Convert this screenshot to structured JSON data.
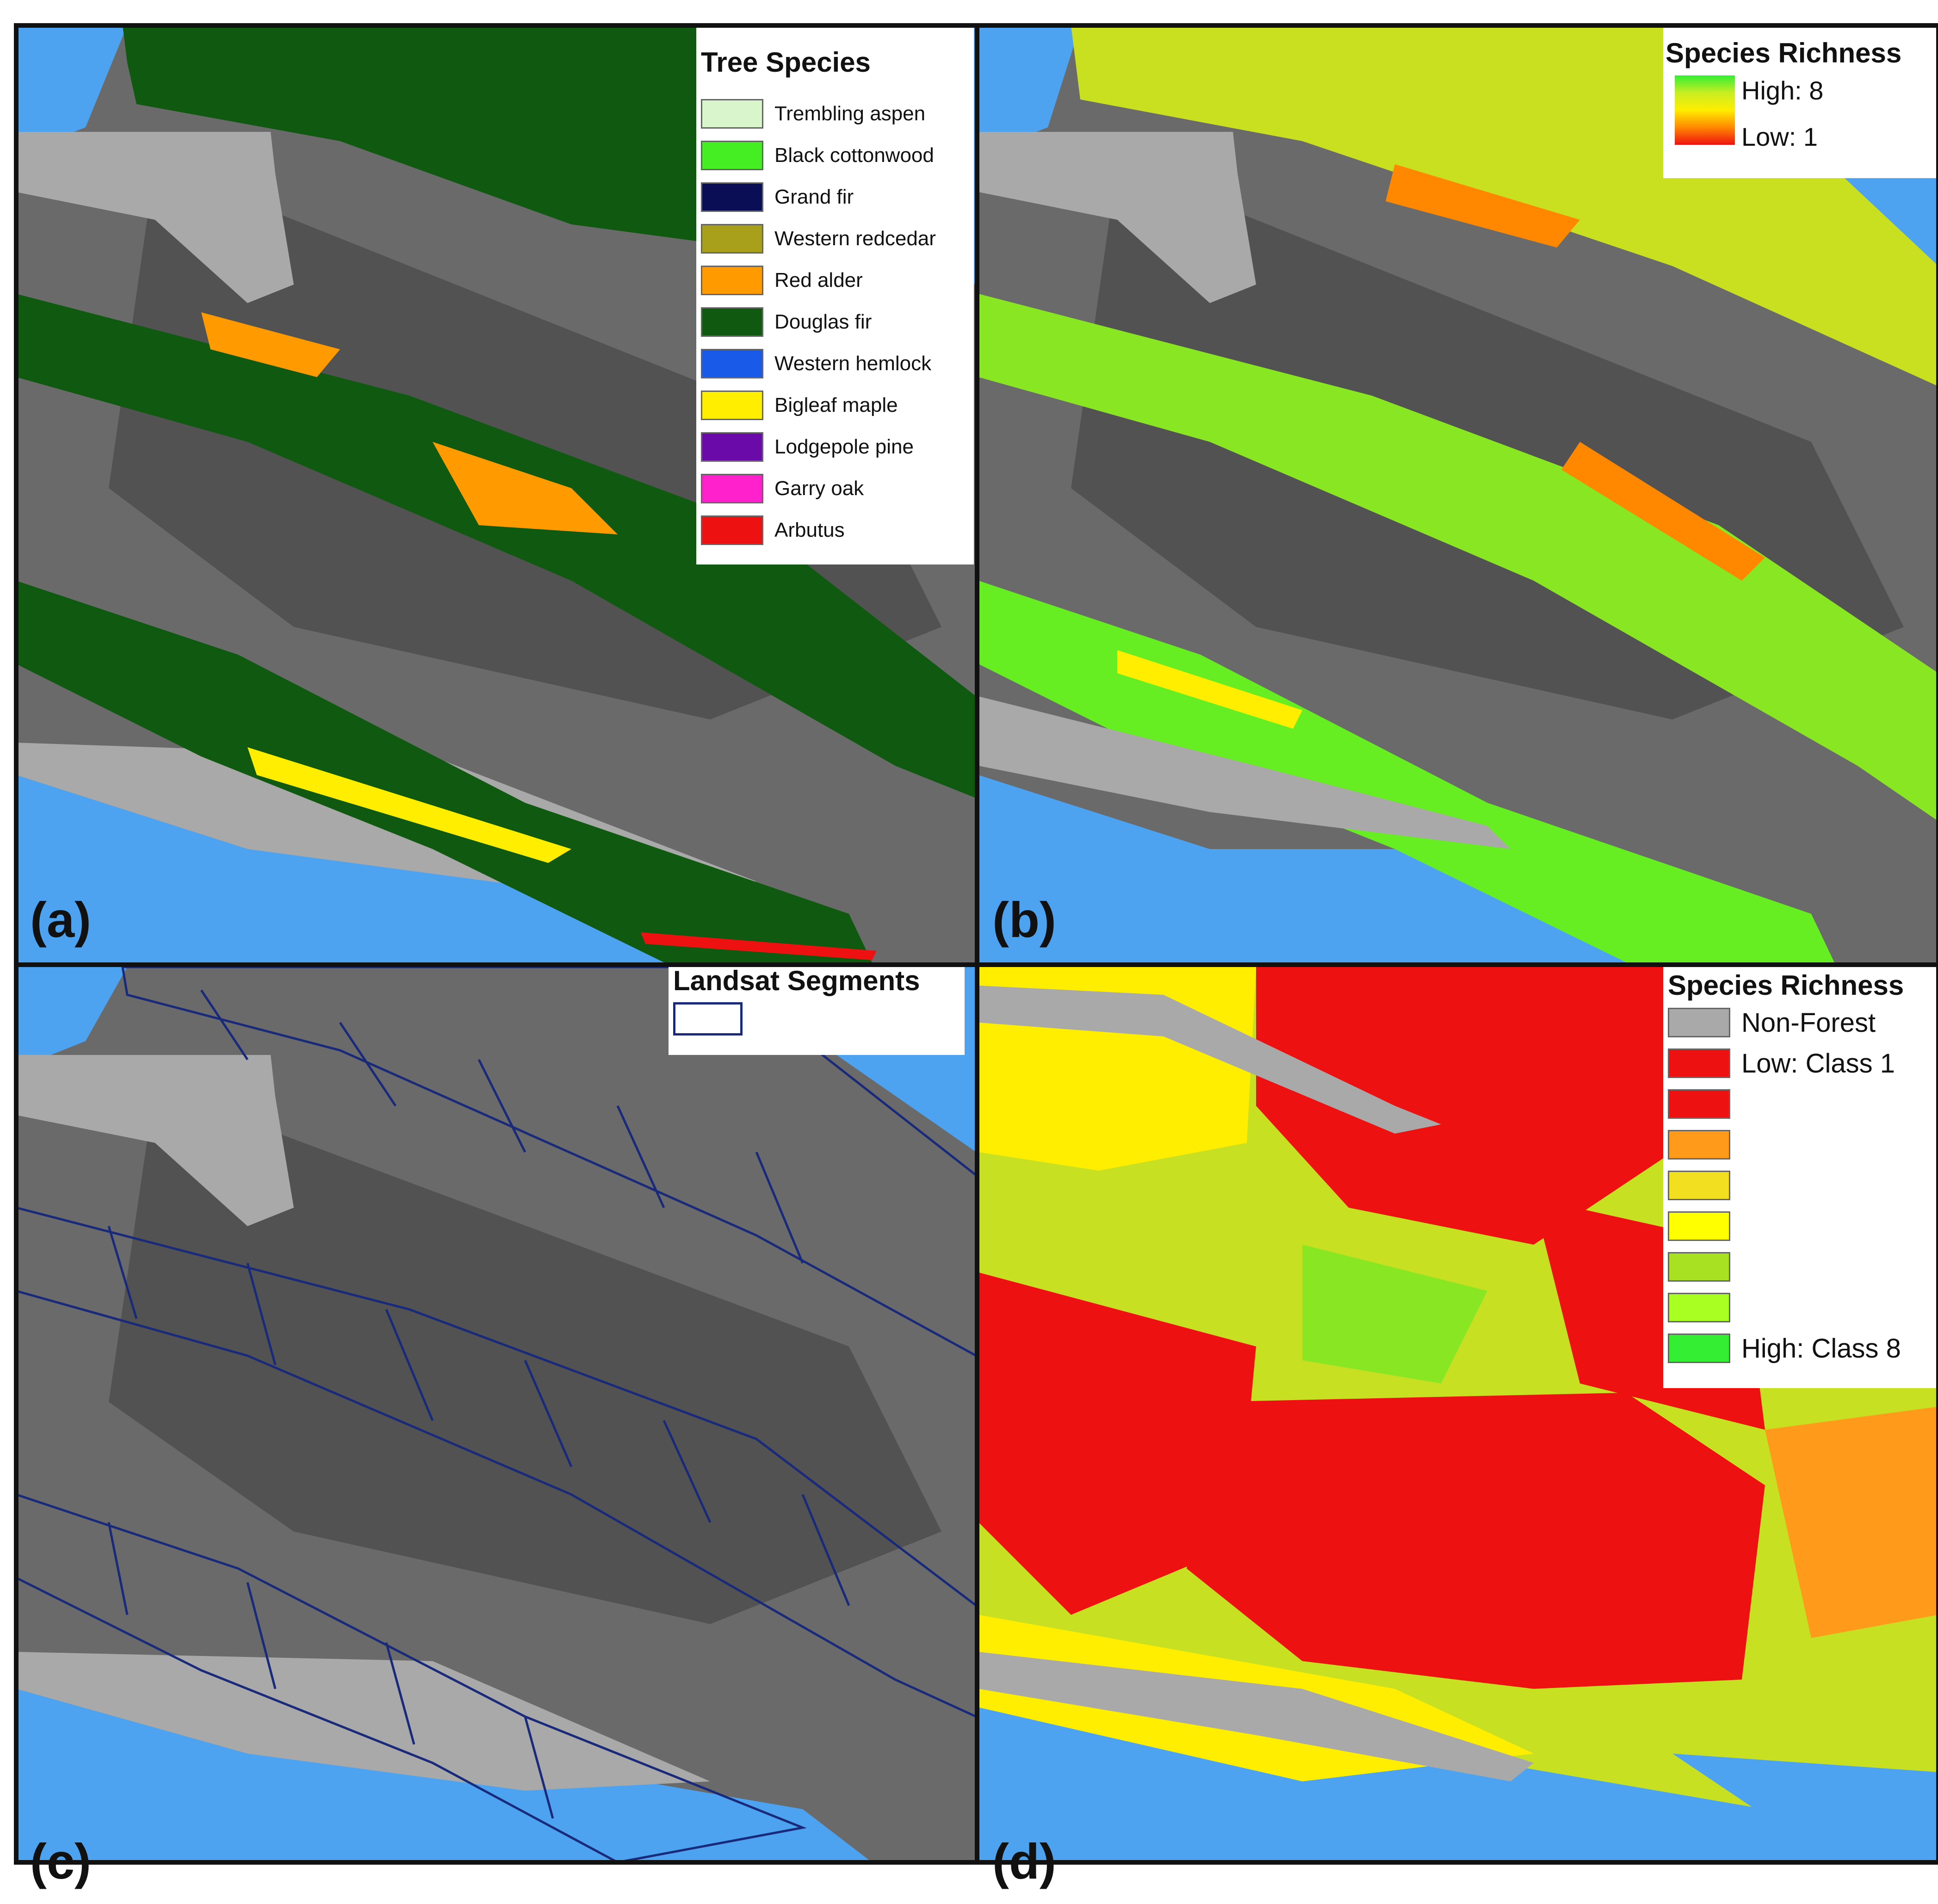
{
  "panels": {
    "a": {
      "label": "(a)",
      "legend": {
        "title": "Tree Species",
        "items": [
          {
            "label": "Trembling aspen",
            "color": "#d8f5cc"
          },
          {
            "label": "Black cottonwood",
            "color": "#44ee22"
          },
          {
            "label": "Grand fir",
            "color": "#0a0f55"
          },
          {
            "label": "Western redcedar",
            "color": "#a8a01a"
          },
          {
            "label": "Red alder",
            "color": "#ff9a00"
          },
          {
            "label": "Douglas fir",
            "color": "#0f5a10"
          },
          {
            "label": "Western hemlock",
            "color": "#1a5ae8"
          },
          {
            "label": "Bigleaf maple",
            "color": "#ffee00"
          },
          {
            "label": "Lodgepole pine",
            "color": "#6a0aa8"
          },
          {
            "label": "Garry oak",
            "color": "#ff22cc"
          },
          {
            "label": "Arbutus",
            "color": "#ee1111"
          }
        ]
      }
    },
    "b": {
      "label": "(b)",
      "legend": {
        "title": "Species Richness",
        "high": "High: 8",
        "low": "Low: 1"
      }
    },
    "c": {
      "label": "(c)",
      "legend": {
        "title": "Landsat Segments",
        "outline_color": "#1a2a7a"
      }
    },
    "d": {
      "label": "(d)",
      "legend": {
        "title": "Species Richness",
        "items": [
          {
            "label": "Non-Forest",
            "color": "#a9a9a9"
          },
          {
            "label": "Low: Class 1",
            "color": "#ee1111"
          },
          {
            "label": "",
            "color": "#ee1111"
          },
          {
            "label": "",
            "color": "#ff9a1a"
          },
          {
            "label": "",
            "color": "#f2e020"
          },
          {
            "label": "",
            "color": "#ffff00"
          },
          {
            "label": "",
            "color": "#a8e022"
          },
          {
            "label": "",
            "color": "#aaff22"
          },
          {
            "label": "High: Class 8",
            "color": "#33ee33"
          }
        ]
      }
    }
  },
  "colors": {
    "water": "#4da3f0",
    "non_forest": "#a9a9a9",
    "frame": "#111111"
  }
}
